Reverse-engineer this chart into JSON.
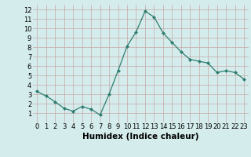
{
  "x": [
    0,
    1,
    2,
    3,
    4,
    5,
    6,
    7,
    8,
    9,
    10,
    11,
    12,
    13,
    14,
    15,
    16,
    17,
    18,
    19,
    20,
    21,
    22,
    23
  ],
  "y": [
    3.3,
    2.8,
    2.2,
    1.5,
    1.2,
    1.7,
    1.4,
    0.8,
    3.0,
    5.5,
    8.1,
    9.6,
    11.8,
    11.2,
    9.5,
    8.5,
    7.5,
    6.7,
    6.5,
    6.3,
    5.3,
    5.5,
    5.3,
    4.6
  ],
  "xlabel": "Humidex (Indice chaleur)",
  "ylim": [
    0.0,
    12.5
  ],
  "xlim": [
    -0.5,
    23.5
  ],
  "yticks": [
    1,
    2,
    3,
    4,
    5,
    6,
    7,
    8,
    9,
    10,
    11,
    12
  ],
  "xticks": [
    0,
    1,
    2,
    3,
    4,
    5,
    6,
    7,
    8,
    9,
    10,
    11,
    12,
    13,
    14,
    15,
    16,
    17,
    18,
    19,
    20,
    21,
    22,
    23
  ],
  "line_color": "#2e7d6e",
  "marker": "D",
  "marker_size": 2.0,
  "bg_color": "#d4ecec",
  "grid_color": "#c8a8a8",
  "xlabel_fontsize": 7.5,
  "tick_fontsize": 6.0,
  "linewidth": 0.9
}
